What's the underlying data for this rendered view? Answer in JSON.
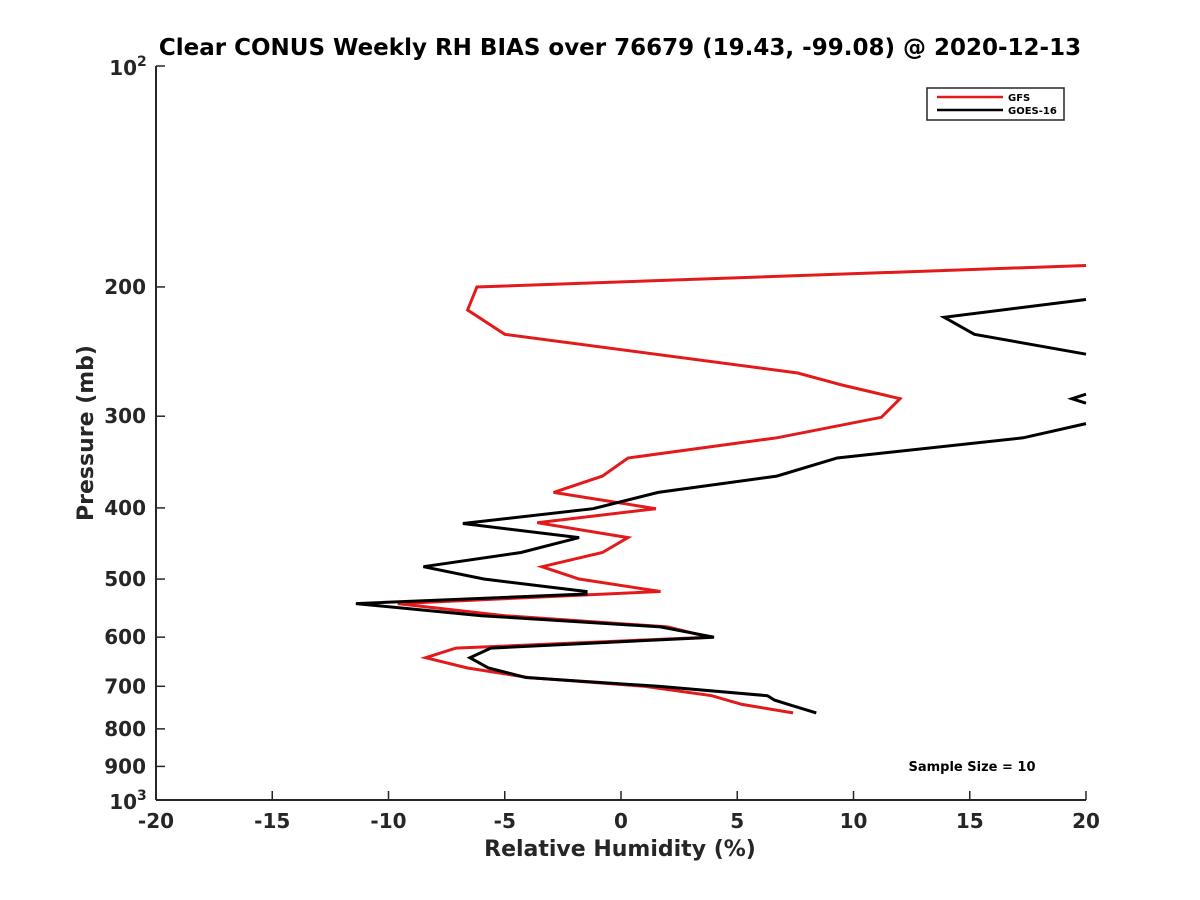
{
  "chart_data": {
    "type": "line",
    "title": "Clear CONUS Weekly RH BIAS over 76679 (19.43, -99.08) @ 2020-12-13",
    "xlabel": "Relative Humidity (%)",
    "ylabel": "Pressure (mb)",
    "xlim": [
      -20,
      20
    ],
    "ylim": [
      100,
      1000
    ],
    "y_scale": "log",
    "y_reversed": true,
    "x_ticks": [
      "-20",
      "-15",
      "-10",
      "-5",
      "0",
      "5",
      "10",
      "15",
      "20"
    ],
    "y_ticks": [
      {
        "value": 200,
        "label": "200"
      },
      {
        "value": 300,
        "label": "300"
      },
      {
        "value": 400,
        "label": "400"
      },
      {
        "value": 500,
        "label": "500"
      },
      {
        "value": 600,
        "label": "600"
      },
      {
        "value": 700,
        "label": "700"
      },
      {
        "value": 800,
        "label": "800"
      },
      {
        "value": 900,
        "label": "900"
      }
    ],
    "y_end_labels": {
      "top_base": "10",
      "top_exp": "2",
      "bottom_base": "10",
      "bottom_exp": "3"
    },
    "grid": false,
    "legend_position": "top-right",
    "series": [
      {
        "name": "GFS",
        "color": "#e31a1c",
        "points": [
          [
            20,
            187
          ],
          [
            -6.2,
            200
          ],
          [
            -6.6,
            215
          ],
          [
            -5.0,
            232
          ],
          [
            7.6,
            262
          ],
          [
            9.5,
            272
          ],
          [
            12.0,
            284
          ],
          [
            11.2,
            301
          ],
          [
            6.7,
            321
          ],
          [
            0.3,
            342
          ],
          [
            -0.8,
            362
          ],
          [
            -2.9,
            381
          ],
          [
            1.5,
            401
          ],
          [
            -3.6,
            419
          ],
          [
            0.3,
            439
          ],
          [
            -0.8,
            460
          ],
          [
            -3.4,
            481
          ],
          [
            -1.8,
            500
          ],
          [
            1.7,
            520
          ],
          [
            -9.6,
            540
          ],
          [
            -5.0,
            561
          ],
          [
            2.0,
            581
          ],
          [
            3.8,
            600
          ],
          [
            -7.1,
            621
          ],
          [
            -8.4,
            640
          ],
          [
            -6.6,
            661
          ],
          [
            -4.0,
            681
          ],
          [
            1.0,
            700
          ],
          [
            3.9,
            721
          ],
          [
            5.2,
            741
          ],
          [
            7.4,
            761
          ]
        ]
      },
      {
        "name": "GOES-16",
        "color": "#000000",
        "points": [
          [
            20,
            208
          ],
          [
            13.9,
            220
          ],
          [
            15.2,
            232
          ],
          [
            20,
            247
          ],
          null,
          [
            20,
            280
          ],
          [
            19.4,
            284
          ],
          [
            20,
            288
          ],
          null,
          [
            20,
            307
          ],
          [
            17.3,
            321
          ],
          [
            9.3,
            342
          ],
          [
            6.7,
            362
          ],
          [
            1.6,
            381
          ],
          [
            -1.2,
            401
          ],
          [
            -6.8,
            420
          ],
          [
            -1.8,
            439
          ],
          [
            -4.3,
            460
          ],
          [
            -8.5,
            481
          ],
          [
            -5.9,
            500
          ],
          [
            -1.5,
            520
          ],
          [
            -1.5,
            524
          ],
          [
            -11.4,
            540
          ],
          [
            -6.0,
            561
          ],
          [
            1.7,
            581
          ],
          [
            4.0,
            600
          ],
          [
            -5.6,
            621
          ],
          [
            -6.5,
            640
          ],
          [
            -5.7,
            661
          ],
          [
            -4.1,
            681
          ],
          [
            1.6,
            700
          ],
          [
            6.3,
            721
          ],
          [
            6.6,
            731
          ],
          [
            7.2,
            741
          ],
          [
            8.4,
            761
          ]
        ]
      }
    ],
    "annotation": "Sample Size = 10"
  }
}
